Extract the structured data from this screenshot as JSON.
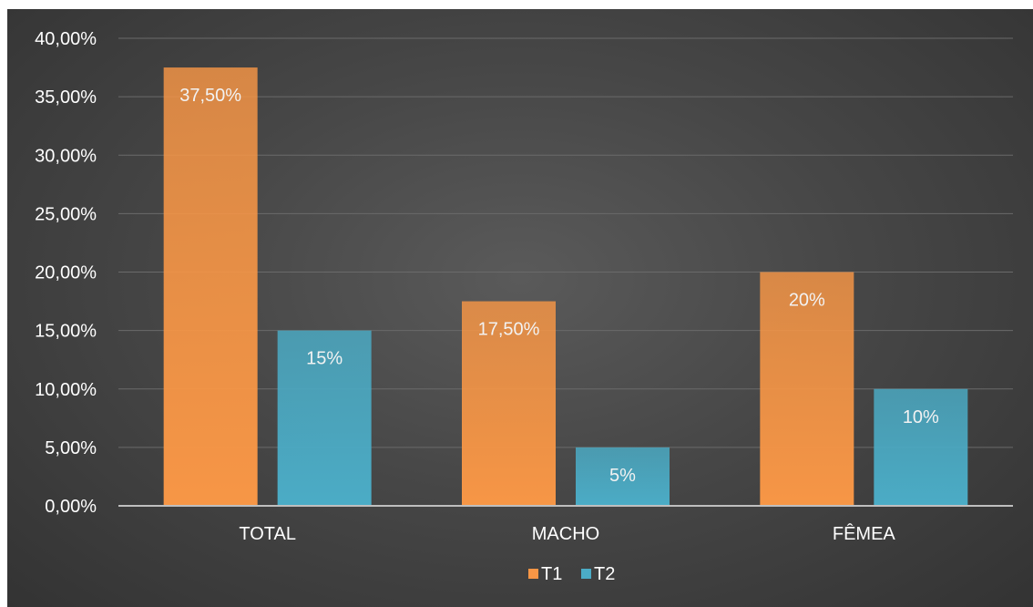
{
  "chart_data": {
    "type": "bar",
    "title": "",
    "xlabel": "",
    "ylabel": "",
    "categories": [
      "TOTAL",
      "MACHO",
      "FÊMEA"
    ],
    "series": [
      {
        "name": "T1",
        "values": [
          37.5,
          17.5,
          20
        ],
        "labels": [
          "37,50%",
          "17,50%",
          "20%"
        ],
        "color": "#f79646"
      },
      {
        "name": "T2",
        "values": [
          15,
          5,
          10
        ],
        "labels": [
          "15%",
          "5%",
          "10%"
        ],
        "color": "#4bacc6"
      }
    ],
    "ylim": [
      0,
      40
    ],
    "yticks": [
      0,
      5,
      10,
      15,
      20,
      25,
      30,
      35,
      40
    ],
    "ytick_labels": [
      "0,00%",
      "5,00%",
      "10,00%",
      "15,00%",
      "20,00%",
      "25,00%",
      "30,00%",
      "35,00%",
      "40,00%"
    ],
    "grid": true,
    "legend_position": "bottom",
    "colors": {
      "gridline": "#6a6a6a",
      "axis": "#bfbfbf"
    }
  }
}
